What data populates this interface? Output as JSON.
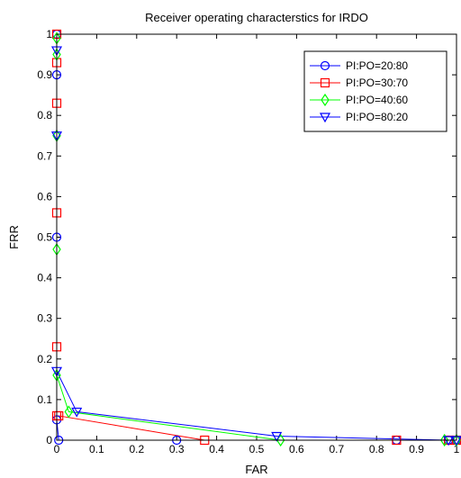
{
  "chart_data": {
    "type": "line",
    "title": "Receiver operating characterstics for IRDO",
    "xlabel": "FAR",
    "ylabel": "FRR",
    "xlim": [
      0,
      1
    ],
    "ylim": [
      0,
      1
    ],
    "xticks": [
      "0",
      "0.1",
      "0.2",
      "0.3",
      "0.4",
      "0.5",
      "0.6",
      "0.7",
      "0.8",
      "0.9",
      "1"
    ],
    "yticks": [
      "0",
      "0.1",
      "0.2",
      "0.3",
      "0.4",
      "0.5",
      "0.6",
      "0.7",
      "0.8",
      "0.9",
      "1"
    ],
    "grid": false,
    "legend_position": "top-right",
    "series": [
      {
        "name": "PI:PO=20:80",
        "color": "#0000ff",
        "marker": "circle",
        "points": [
          [
            0,
            1
          ],
          [
            0,
            0.9
          ],
          [
            0,
            0.5
          ],
          [
            0,
            0.05
          ],
          [
            0.005,
            0
          ],
          [
            0.3,
            0
          ],
          [
            0.85,
            0
          ],
          [
            0.98,
            0
          ],
          [
            1,
            0
          ]
        ]
      },
      {
        "name": "PI:PO=30:70",
        "color": "#ff0000",
        "marker": "square",
        "points": [
          [
            0,
            1
          ],
          [
            0,
            0.93
          ],
          [
            0,
            0.83
          ],
          [
            0,
            0.56
          ],
          [
            0,
            0.23
          ],
          [
            0,
            0.06
          ],
          [
            0.005,
            0.06
          ],
          [
            0.37,
            0
          ],
          [
            0.85,
            0
          ],
          [
            0.98,
            0
          ],
          [
            1,
            0
          ]
        ]
      },
      {
        "name": "PI:PO=40:60",
        "color": "#00ff00",
        "marker": "diamond",
        "points": [
          [
            0,
            0.99
          ],
          [
            0,
            0.95
          ],
          [
            0,
            0.75
          ],
          [
            0,
            0.47
          ],
          [
            0,
            0.16
          ],
          [
            0.03,
            0.07
          ],
          [
            0.56,
            0
          ],
          [
            0.97,
            0
          ],
          [
            1,
            0
          ]
        ]
      },
      {
        "name": "PI:PO=80:20",
        "color": "#0000ff",
        "marker": "triangle-down",
        "points": [
          [
            0,
            0.96
          ],
          [
            0,
            0.75
          ],
          [
            0,
            0.17
          ],
          [
            0.05,
            0.07
          ],
          [
            0.55,
            0.01
          ],
          [
            0.98,
            0
          ],
          [
            1,
            0
          ]
        ]
      }
    ]
  }
}
